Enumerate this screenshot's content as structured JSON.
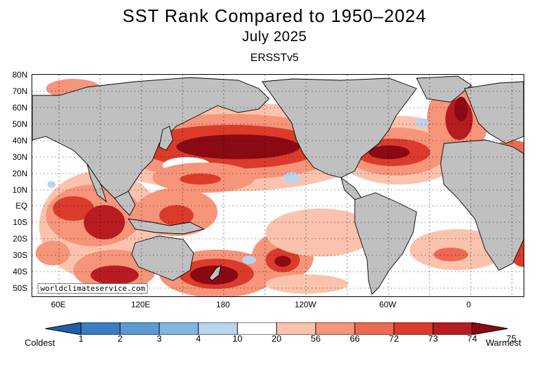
{
  "header": {
    "title": "SST Rank Compared to 1950–2024",
    "subtitle": "July 2025",
    "dataset": "ERSSTv5"
  },
  "map": {
    "lat_labels": [
      "80N",
      "70N",
      "60N",
      "50N",
      "40N",
      "30N",
      "20N",
      "10N",
      "EQ",
      "10S",
      "20S",
      "30S",
      "40S",
      "50S"
    ],
    "lon_labels": [
      "60E",
      "120E",
      "180",
      "120W",
      "60W",
      "0"
    ],
    "credit": "worldclimateservice.com",
    "land_color": "#c0c0c0"
  },
  "legend": {
    "left_label": "Coldest",
    "right_label": "Warmest",
    "ticks": [
      "1",
      "2",
      "3",
      "4",
      "10",
      "20",
      "56",
      "66",
      "72",
      "73",
      "74",
      "75"
    ],
    "colors": [
      "#1f5fa8",
      "#3a7dc0",
      "#5b9bd3",
      "#80b7e2",
      "#b8d4ee",
      "#ffffff",
      "#fbc3ad",
      "#f6957a",
      "#ee6951",
      "#dc3b2c",
      "#b81c20",
      "#8b0a14"
    ]
  }
}
